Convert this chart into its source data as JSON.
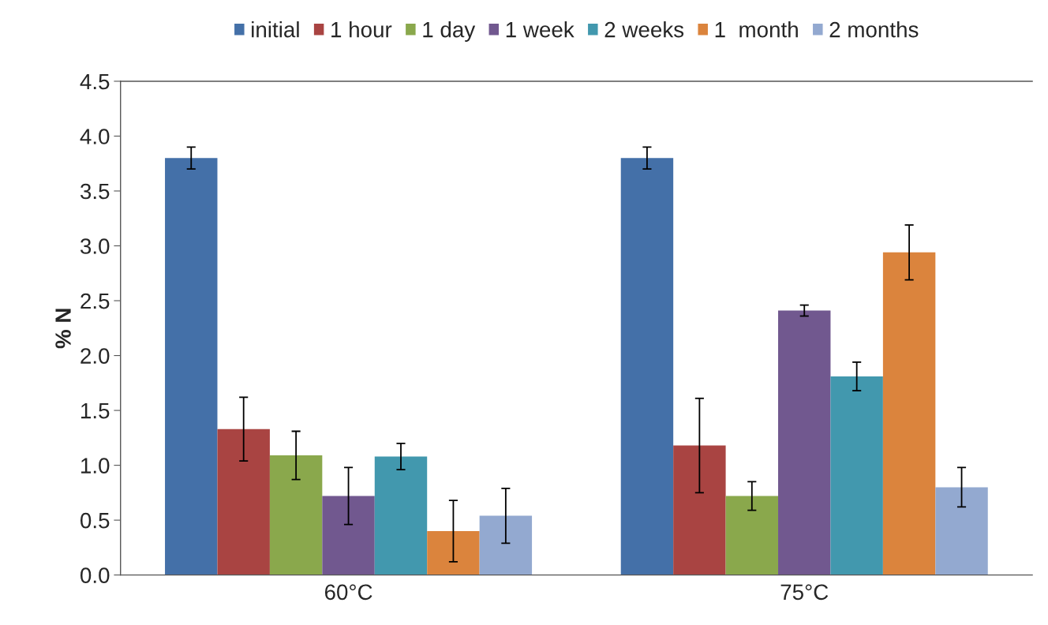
{
  "chart_data": {
    "type": "bar",
    "ylabel": "% N",
    "categories": [
      "60°C",
      "75°C"
    ],
    "series": [
      {
        "name": "initial",
        "color": "#4470a8",
        "values": [
          3.8,
          3.8
        ],
        "errors": [
          0.1,
          0.1
        ]
      },
      {
        "name": "1 hour",
        "color": "#a94442",
        "values": [
          1.33,
          1.18
        ],
        "errors": [
          0.29,
          0.43
        ]
      },
      {
        "name": "1 day",
        "color": "#8aa84c",
        "values": [
          1.09,
          0.72
        ],
        "errors": [
          0.22,
          0.13
        ]
      },
      {
        "name": "1 week",
        "color": "#71588f",
        "values": [
          0.72,
          2.41
        ],
        "errors": [
          0.26,
          0.05
        ]
      },
      {
        "name": "2 weeks",
        "color": "#4298ae",
        "values": [
          1.08,
          1.81
        ],
        "errors": [
          0.12,
          0.13
        ]
      },
      {
        "name": "1  month",
        "color": "#db843d",
        "values": [
          0.4,
          2.94
        ],
        "errors": [
          0.28,
          0.25
        ]
      },
      {
        "name": "2 months",
        "color": "#93a9d0",
        "values": [
          0.54,
          0.8
        ],
        "errors": [
          0.25,
          0.18
        ]
      }
    ],
    "ylim": [
      0,
      4.5
    ],
    "yticks": [
      {
        "value": 0,
        "label": "0.0"
      },
      {
        "value": 0.5,
        "label": "0.5"
      },
      {
        "value": 1,
        "label": "1.0"
      },
      {
        "value": 1.5,
        "label": "1.5"
      },
      {
        "value": 2,
        "label": "2.0"
      },
      {
        "value": 2.5,
        "label": "2.5"
      },
      {
        "value": 3,
        "label": "3.0"
      },
      {
        "value": 3.5,
        "label": "3.5"
      },
      {
        "value": 4,
        "label": "4.0"
      },
      {
        "value": 4.5,
        "label": "4.5"
      }
    ],
    "grid": false,
    "legend": "top"
  }
}
